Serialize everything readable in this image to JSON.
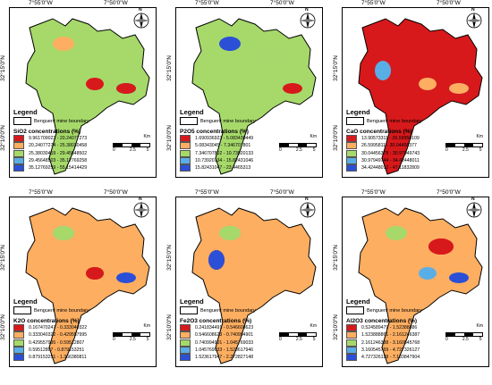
{
  "coords": {
    "lon_left": "7°55'0\"W",
    "lon_right": "7°50'0\"W",
    "lat_top": "32°15'0\"N",
    "lat_bottom": "32°10'0\"N"
  },
  "compass_label": "N",
  "legend_title": "Legend",
  "boundary_label": "Benguerir mine boundary",
  "scale": {
    "unit": "Km",
    "ticks": [
      "0",
      "2.5",
      "5"
    ]
  },
  "panels": [
    {
      "id": "sio2",
      "title": "SiO2 concentrations (%)",
      "classes": [
        {
          "label": "9.961709023 - 20.24077273",
          "color": "#d7191c"
        },
        {
          "label": "20.24077274 - 25.38030458",
          "color": "#fdae61"
        },
        {
          "label": "25.38030459 - 29.45648502",
          "color": "#a6d96a"
        },
        {
          "label": "29.45648503 - 35.12769258",
          "color": "#5aaee6"
        },
        {
          "label": "35.12769259 - 55.15414429",
          "color": "#2b4fd6"
        }
      ]
    },
    {
      "id": "p2o5",
      "title": "P2O5 concentrations (%)",
      "classes": [
        {
          "label": "1.690936923 - 5.083430449",
          "color": "#d7191c"
        },
        {
          "label": "5.08343045 - 7.346707801",
          "color": "#fdae61"
        },
        {
          "label": "7.346707802 - 10.73920133",
          "color": "#a6d96a"
        },
        {
          "label": "10.73920134 - 15.82431046",
          "color": "#5aaee6"
        },
        {
          "label": "15.82431047 - 23.4465313",
          "color": "#2b4fd6"
        }
      ]
    },
    {
      "id": "cao",
      "title": "CaO concentrations (%)",
      "classes": [
        {
          "label": "13.90573311 - 26.59958109",
          "color": "#d7191c"
        },
        {
          "label": "26.5995811 - 30.04456377",
          "color": "#fdae61"
        },
        {
          "label": "30.04456378 - 30.97949743",
          "color": "#a6d96a"
        },
        {
          "label": "30.97949744 - 34.42448011",
          "color": "#5aaee6"
        },
        {
          "label": "34.42448012 - 47.11832809",
          "color": "#2b4fd6"
        }
      ]
    },
    {
      "id": "k2o",
      "title": "K2O concentrations (%)",
      "classes": [
        {
          "label": "0.167470247 - 0.333040322",
          "color": "#d7191c"
        },
        {
          "label": "0.333040322 - 0.429557995",
          "color": "#fdae61"
        },
        {
          "label": "0.429557995 - 0.59512807",
          "color": "#a6d96a"
        },
        {
          "label": "0.59512807 - 0.879153251",
          "color": "#5aaee6"
        },
        {
          "label": "0.879153251 - 1.366380811",
          "color": "#2b4fd6"
        }
      ]
    },
    {
      "id": "fe2o3",
      "title": "Fe2O3 concentrations (%)",
      "classes": [
        {
          "label": "0.241834491 - 0.546608623",
          "color": "#d7191c"
        },
        {
          "label": "0.546608623 - 0.740994901",
          "color": "#fdae61"
        },
        {
          "label": "0.740994901 - 1.045769033",
          "color": "#a6d96a"
        },
        {
          "label": "1.045769033 - 1.523617946",
          "color": "#5aaee6"
        },
        {
          "label": "1.523617947 - 2.272827148",
          "color": "#2b4fd6"
        }
      ]
    },
    {
      "id": "al2o3",
      "title": "Al2O3 concentrations (%)",
      "classes": [
        {
          "label": "0.524589479 - 1.52388886",
          "color": "#d7191c"
        },
        {
          "label": "1.523888861 - 2.161246387",
          "color": "#fdae61"
        },
        {
          "label": "2.161246388 - 3.160545768",
          "color": "#a6d96a"
        },
        {
          "label": "3.160545769 - 4.727326127",
          "color": "#5aaee6"
        },
        {
          "label": "4.727326128 - 7.183847904",
          "color": "#2b4fd6"
        }
      ]
    }
  ]
}
